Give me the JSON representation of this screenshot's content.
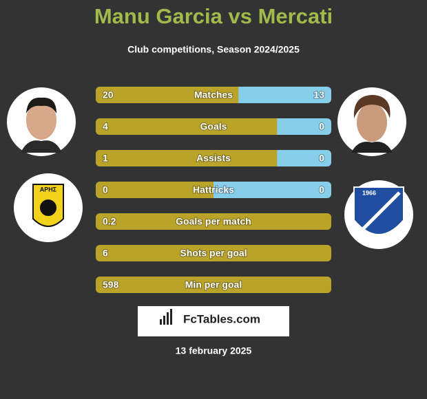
{
  "header": {
    "title": "Manu Garcia vs Mercati",
    "subtitle": "Club competitions, Season 2024/2025"
  },
  "rows": [
    {
      "label": "Matches",
      "left": 20,
      "right": 13
    },
    {
      "label": "Goals",
      "left": 4,
      "right": 0
    },
    {
      "label": "Assists",
      "left": 1,
      "right": 0
    },
    {
      "label": "Hattricks",
      "left": 0,
      "right": 0
    },
    {
      "label": "Goals per match",
      "left": 0.2
    },
    {
      "label": "Shots per goal",
      "left": 6
    },
    {
      "label": "Min per goal",
      "left": 598
    }
  ],
  "badges": {
    "left": "ΑΡΗΣ",
    "right": "1966"
  },
  "brand": "FcTables.com",
  "date": "13 february 2025"
}
